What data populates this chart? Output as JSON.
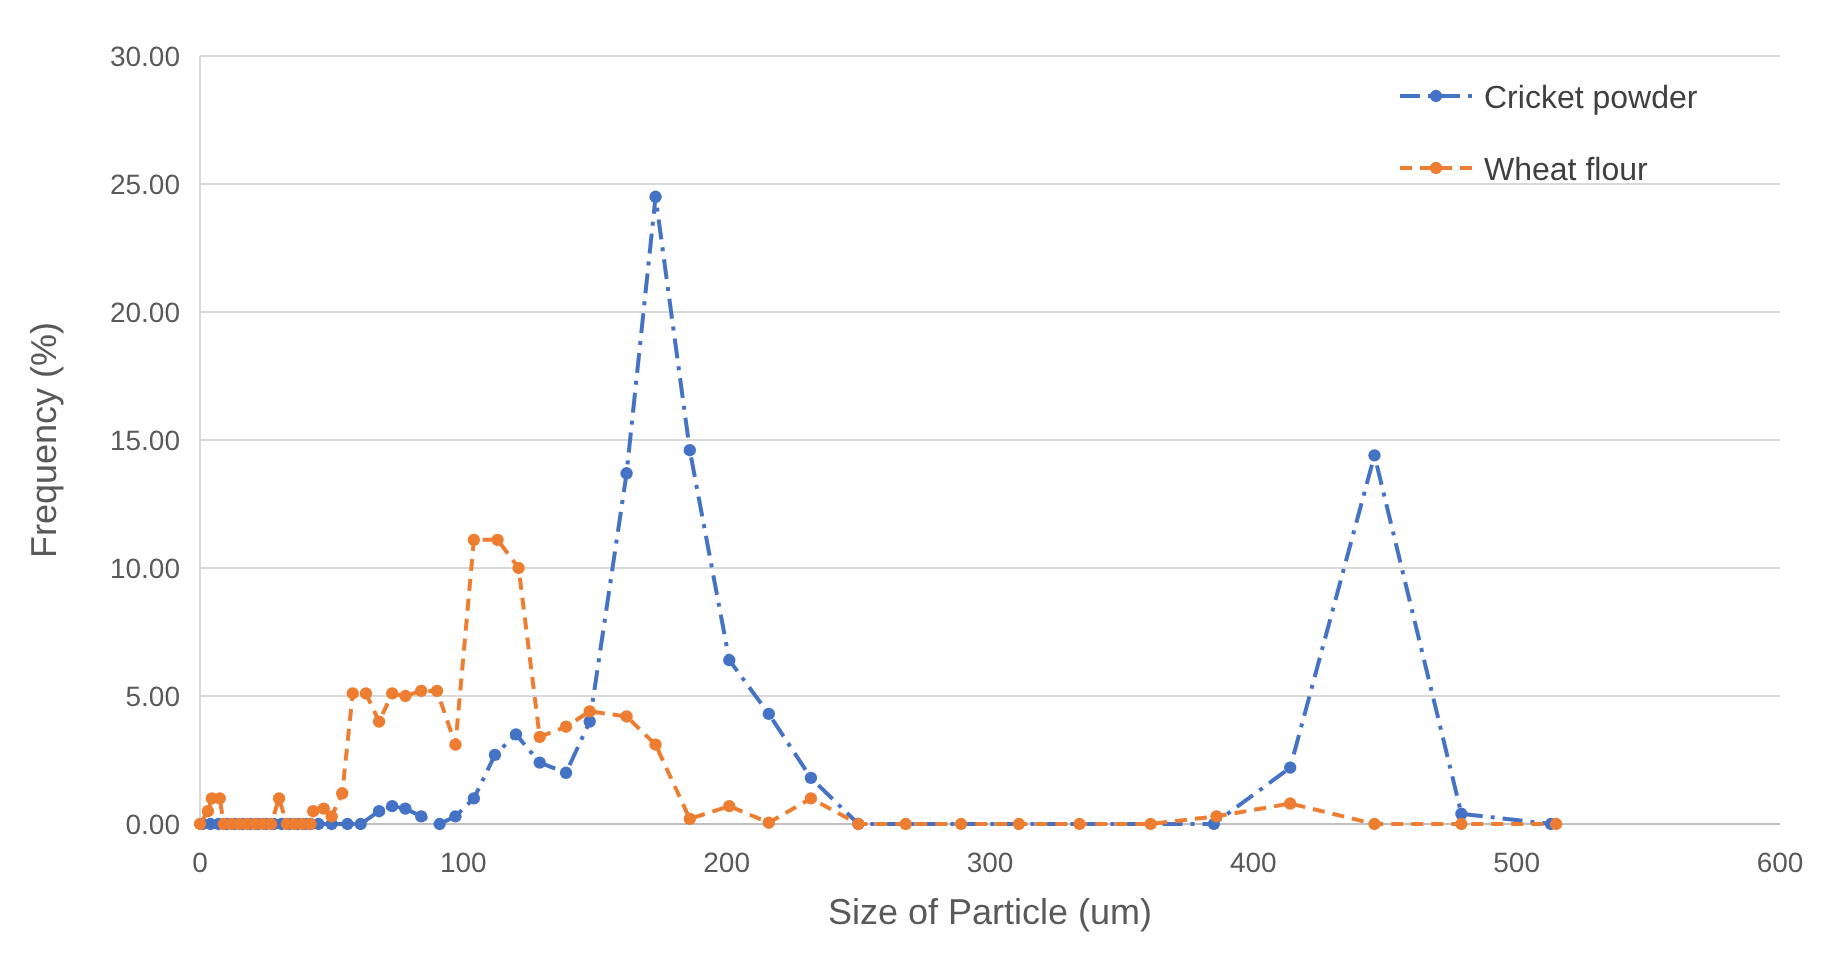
{
  "chart_data": {
    "type": "line",
    "xlabel": "Size of Particle (um)",
    "ylabel": "Frequency (%)",
    "xlim": [
      0,
      600
    ],
    "xticks": [
      0,
      100,
      200,
      300,
      400,
      500,
      600
    ],
    "ylim": [
      0,
      30
    ],
    "yticks": [
      {
        "value": 0,
        "label": "0.00"
      },
      {
        "value": 5,
        "label": "5.00"
      },
      {
        "value": 10,
        "label": "10.00"
      },
      {
        "value": 15,
        "label": "15.00"
      },
      {
        "value": 20,
        "label": "20.00"
      },
      {
        "value": 25,
        "label": "25.00"
      },
      {
        "value": 30,
        "label": "30.00"
      }
    ],
    "grid": "y",
    "legend": "top right",
    "marker": "circle",
    "series": [
      {
        "name": "Cricket powder",
        "color": "#4472c4",
        "line_style": "dotted",
        "x": [
          1,
          4,
          7,
          10,
          13,
          16,
          19,
          22,
          25,
          28,
          31,
          34,
          37,
          40,
          42,
          45,
          50,
          56,
          61,
          68,
          73,
          78,
          84,
          91,
          97,
          104,
          112,
          120,
          129,
          139,
          148,
          162,
          173,
          186,
          201,
          216,
          232,
          250,
          385,
          414,
          446,
          479,
          513
        ],
        "values": [
          0,
          0,
          0,
          0,
          0,
          0,
          0,
          0,
          0,
          0,
          0,
          0,
          0,
          0,
          0,
          0,
          0,
          0,
          0,
          0.5,
          0.7,
          0.6,
          0.3,
          0,
          0.3,
          1.0,
          2.7,
          3.5,
          2.4,
          2.0,
          4.0,
          13.7,
          24.5,
          14.6,
          6.4,
          4.3,
          1.8,
          0,
          0,
          2.2,
          14.4,
          0.4,
          0
        ]
      },
      {
        "name": "Wheat flour",
        "color": "#ed7d31",
        "line_style": "dashed",
        "x": [
          0,
          3,
          4.5,
          7.5,
          9,
          12,
          15,
          18,
          21,
          24,
          27,
          30,
          33,
          36,
          39,
          42,
          43,
          47,
          50,
          54,
          58,
          63,
          68,
          73,
          78,
          84,
          90,
          97,
          104,
          113,
          121,
          129,
          139,
          148,
          162,
          173,
          186,
          201,
          216,
          232,
          250,
          268,
          289,
          311,
          334,
          361,
          386,
          414,
          446,
          479,
          515
        ],
        "values": [
          0,
          0.5,
          1.0,
          1.0,
          0,
          0,
          0,
          0,
          0,
          0,
          0,
          1.0,
          0,
          0,
          0,
          0,
          0.5,
          0.6,
          0.3,
          1.2,
          5.1,
          5.1,
          4.0,
          5.1,
          5.0,
          5.2,
          5.2,
          3.1,
          11.1,
          11.1,
          10.0,
          3.4,
          3.8,
          4.4,
          4.2,
          3.1,
          0.2,
          0.7,
          0.05,
          1.0,
          0,
          0,
          0,
          0,
          0,
          0,
          0.3,
          0.8,
          0,
          0,
          0
        ]
      }
    ]
  }
}
